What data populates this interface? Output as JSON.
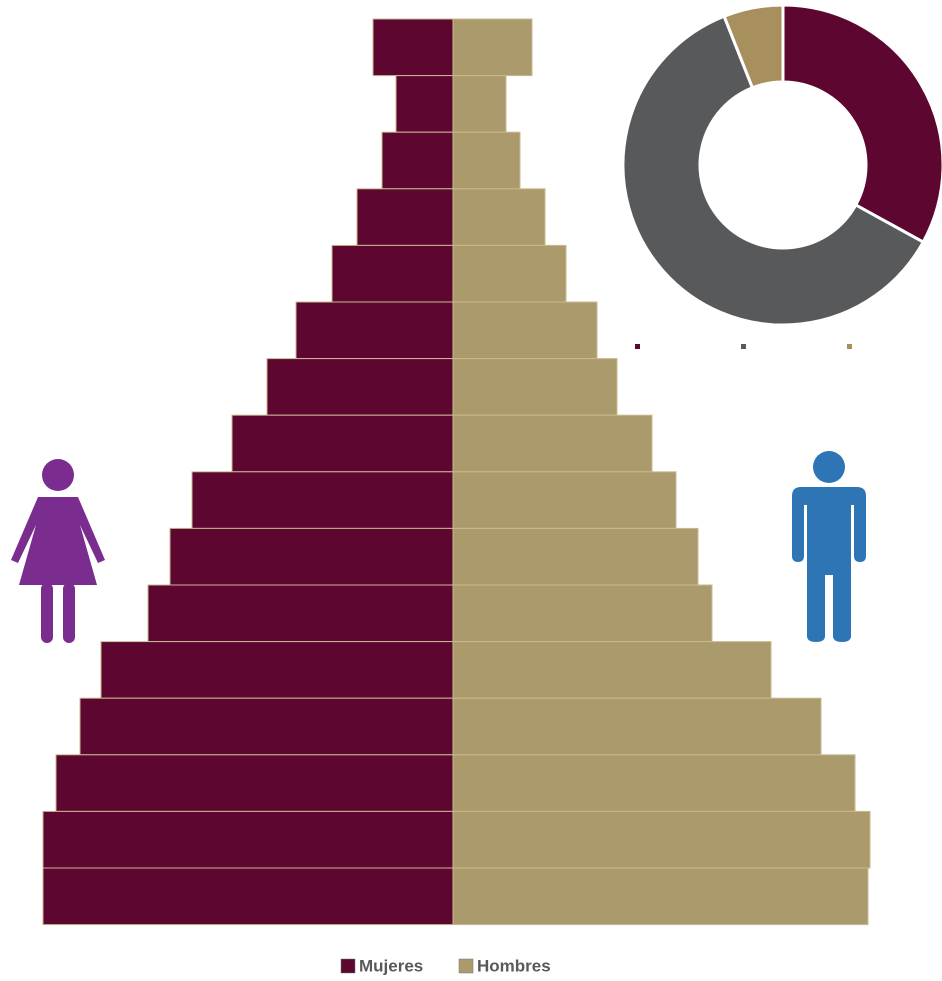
{
  "chart_data": [
    {
      "type": "pyramid",
      "categories": [
        null,
        null,
        null,
        null,
        null,
        null,
        null,
        null,
        null,
        null,
        null,
        null,
        null,
        null,
        null,
        null
      ],
      "series": [
        {
          "name": "Mujeres",
          "color": "#5c0630",
          "values": [
            80,
            57,
            71,
            96,
            121,
            157,
            186,
            221,
            261,
            283,
            305,
            352,
            373,
            397,
            410,
            410
          ]
        },
        {
          "name": "Hombres",
          "color": "#ab9b6c",
          "values": [
            79,
            53,
            67,
            92,
            113,
            144,
            164,
            199,
            223,
            245,
            259,
            318,
            368,
            402,
            417,
            415
          ]
        }
      ]
    },
    {
      "type": "donut",
      "values": [
        33,
        61,
        6
      ],
      "colors": [
        "#5c0630",
        "#58595b",
        "#a8905e"
      ]
    }
  ]
}
